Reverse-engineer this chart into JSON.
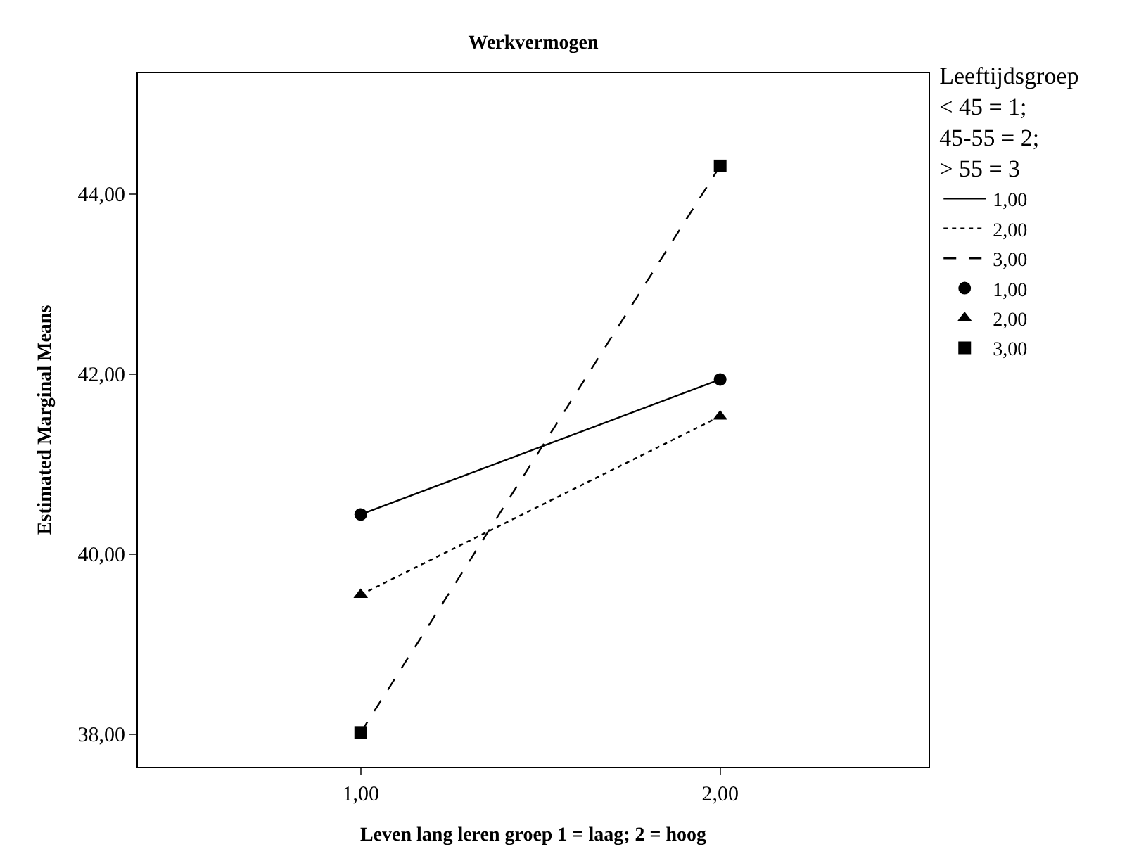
{
  "chart_data": {
    "type": "line",
    "title": "Werkvermogen",
    "xlabel": "Leven lang leren groep 1 = laag; 2 = hoog",
    "ylabel": "Estimated Marginal Means",
    "legend_title": "Leeftijdsgroep\n< 45 = 1;\n45-55 = 2;\n> 55 = 3",
    "categories": [
      "1,00",
      "2,00"
    ],
    "series": [
      {
        "name": "1,00",
        "color": "#000000",
        "line_style": "solid",
        "marker": "none",
        "values": [
          40.44,
          41.94
        ]
      },
      {
        "name": "2,00",
        "color": "#000000",
        "line_style": "dotted",
        "marker": "none",
        "values": [
          39.55,
          41.53
        ]
      },
      {
        "name": "3,00",
        "color": "#000000",
        "line_style": "dashed",
        "marker": "none",
        "values": [
          38.02,
          44.31
        ]
      },
      {
        "name": "1,00",
        "type": "scatter",
        "color": "#000000",
        "marker": "circle",
        "values": [
          40.44,
          41.94
        ]
      },
      {
        "name": "2,00",
        "type": "scatter",
        "color": "#000000",
        "marker": "triangle",
        "values": [
          39.55,
          41.53
        ]
      },
      {
        "name": "3,00",
        "type": "scatter",
        "color": "#000000",
        "marker": "square",
        "values": [
          38.02,
          44.31
        ]
      }
    ],
    "ylim": [
      37.64,
      45.34
    ],
    "yticks": [
      {
        "value": 38,
        "label": "38,00"
      },
      {
        "value": 40,
        "label": "40,00"
      },
      {
        "value": 42,
        "label": "42,00"
      },
      {
        "value": 44,
        "label": "44,00"
      }
    ],
    "legend": "top right"
  }
}
